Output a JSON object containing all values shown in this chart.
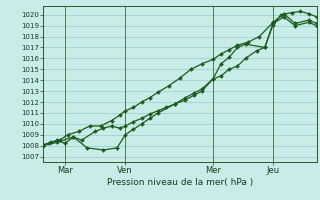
{
  "title": "Pression niveau de la mer( hPa )",
  "bg_color": "#c8ece8",
  "grid_color": "#99cccc",
  "line_color": "#1a5c1a",
  "vline_color": "#3a6a3a",
  "ylim": [
    1006.5,
    1020.8
  ],
  "yticks": [
    1007,
    1008,
    1009,
    1010,
    1011,
    1012,
    1013,
    1014,
    1015,
    1016,
    1017,
    1018,
    1019,
    1020
  ],
  "xtick_labels": [
    "Mar",
    "Ven",
    "Mer",
    "Jeu"
  ],
  "xtick_positions": [
    0.08,
    0.3,
    0.62,
    0.84
  ],
  "xvlines": [
    0.08,
    0.3,
    0.62,
    0.84
  ],
  "xlim": [
    0.0,
    1.0
  ],
  "series": [
    {
      "x": [
        0.0,
        0.02,
        0.05,
        0.08,
        0.11,
        0.14,
        0.19,
        0.22,
        0.25,
        0.28,
        0.3,
        0.33,
        0.36,
        0.39,
        0.42,
        0.45,
        0.48,
        0.52,
        0.55,
        0.58,
        0.62,
        0.65,
        0.68,
        0.71,
        0.74,
        0.78,
        0.81,
        0.84,
        0.87,
        0.91,
        0.94,
        0.97,
        1.0
      ],
      "y": [
        1008.0,
        1008.2,
        1008.5,
        1008.2,
        1008.8,
        1008.5,
        1009.3,
        1009.6,
        1009.8,
        1009.6,
        1009.8,
        1010.2,
        1010.5,
        1010.9,
        1011.2,
        1011.5,
        1011.8,
        1012.2,
        1012.6,
        1013.0,
        1014.1,
        1014.4,
        1015.0,
        1015.3,
        1016.0,
        1016.7,
        1017.0,
        1019.1,
        1020.0,
        1020.2,
        1020.3,
        1020.1,
        1019.8
      ]
    },
    {
      "x": [
        0.0,
        0.05,
        0.11,
        0.16,
        0.22,
        0.27,
        0.3,
        0.33,
        0.36,
        0.39,
        0.42,
        0.48,
        0.52,
        0.55,
        0.58,
        0.62,
        0.65,
        0.68,
        0.71,
        0.74,
        0.81,
        0.84,
        0.88,
        0.92,
        0.97,
        1.0
      ],
      "y": [
        1008.0,
        1008.3,
        1008.8,
        1007.8,
        1007.6,
        1007.8,
        1009.0,
        1009.5,
        1010.0,
        1010.5,
        1011.0,
        1011.8,
        1012.4,
        1012.8,
        1013.2,
        1014.1,
        1015.5,
        1016.1,
        1017.0,
        1017.3,
        1017.0,
        1019.2,
        1019.8,
        1019.0,
        1019.3,
        1019.0
      ]
    },
    {
      "x": [
        0.0,
        0.03,
        0.06,
        0.09,
        0.13,
        0.17,
        0.21,
        0.25,
        0.28,
        0.3,
        0.33,
        0.36,
        0.39,
        0.42,
        0.46,
        0.5,
        0.54,
        0.58,
        0.62,
        0.65,
        0.68,
        0.71,
        0.75,
        0.79,
        0.84,
        0.88,
        0.92,
        0.97,
        1.0
      ],
      "y": [
        1008.1,
        1008.3,
        1008.5,
        1009.0,
        1009.3,
        1009.8,
        1009.8,
        1010.3,
        1010.8,
        1011.2,
        1011.5,
        1012.0,
        1012.4,
        1012.9,
        1013.5,
        1014.2,
        1015.0,
        1015.5,
        1015.9,
        1016.4,
        1016.8,
        1017.2,
        1017.5,
        1018.0,
        1019.3,
        1020.1,
        1019.2,
        1019.5,
        1019.2
      ]
    }
  ]
}
